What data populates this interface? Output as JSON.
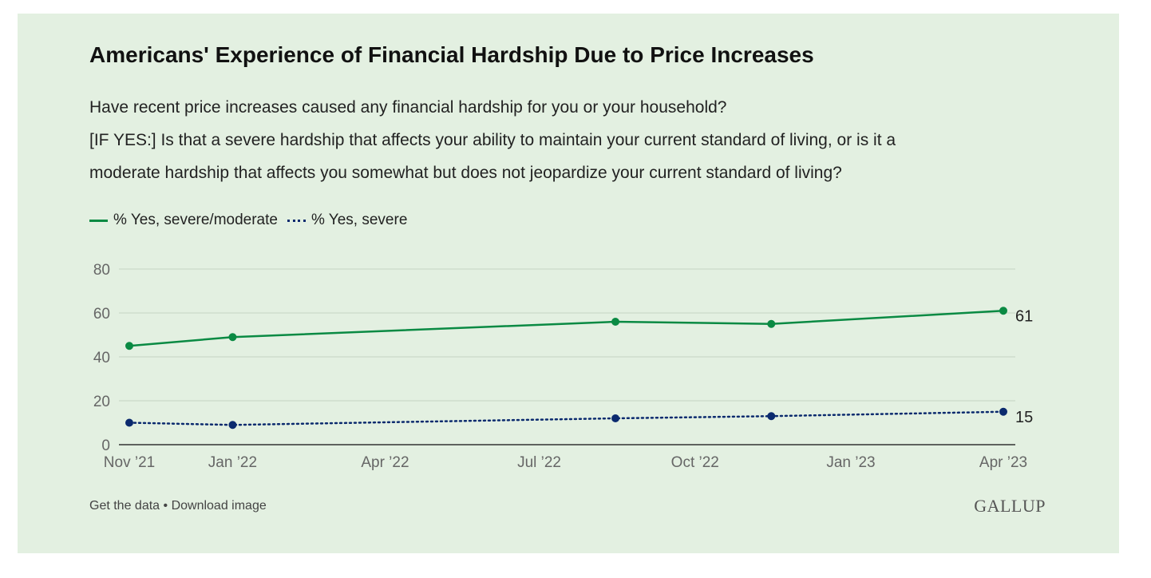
{
  "title": "Americans' Experience of Financial Hardship Due to Price Increases",
  "question_lines": [
    "Have recent price increases caused any financial hardship for you or your household?",
    "[IF YES:] Is that a severe hardship that affects your ability to maintain your current standard of living, or is it a",
    "moderate hardship that affects you somewhat but does not jeopardize your current standard of living?"
  ],
  "legend": [
    {
      "label": "% Yes, severe/moderate",
      "style": "solid",
      "color": "#0a8a43"
    },
    {
      "label": "% Yes, severe",
      "style": "dotted",
      "color": "#0b2a6e"
    }
  ],
  "footer": {
    "get_data": "Get the data",
    "separator": " • ",
    "download": "Download image"
  },
  "logo": "GALLUP",
  "chart_data": {
    "type": "line",
    "x_ticks": [
      "Nov ’21",
      "Jan ’22",
      "Apr ’22",
      "Jul ’22",
      "Oct ’22",
      "Jan ’23",
      "Apr ’23"
    ],
    "x_tick_dates": [
      "2021-11-01",
      "2022-01-01",
      "2022-04-01",
      "2022-07-01",
      "2022-10-01",
      "2023-01-01",
      "2023-04-01"
    ],
    "y_ticks": [
      0,
      20,
      40,
      60,
      80
    ],
    "ylim": [
      0,
      80
    ],
    "grid": true,
    "legend_position": "top-left",
    "series": [
      {
        "name": "% Yes, severe/moderate",
        "color": "#0a8a43",
        "style": "solid",
        "points": [
          {
            "date": "2021-11-01",
            "value": 45
          },
          {
            "date": "2022-01-01",
            "value": 49
          },
          {
            "date": "2022-08-15",
            "value": 56
          },
          {
            "date": "2022-11-15",
            "value": 55
          },
          {
            "date": "2023-04-01",
            "value": 61
          }
        ],
        "end_label": "61"
      },
      {
        "name": "% Yes, severe",
        "color": "#0b2a6e",
        "style": "dotted",
        "points": [
          {
            "date": "2021-11-01",
            "value": 10
          },
          {
            "date": "2022-01-01",
            "value": 9
          },
          {
            "date": "2022-08-15",
            "value": 12
          },
          {
            "date": "2022-11-15",
            "value": 13
          },
          {
            "date": "2023-04-01",
            "value": 15
          }
        ],
        "end_label": "15"
      }
    ]
  }
}
